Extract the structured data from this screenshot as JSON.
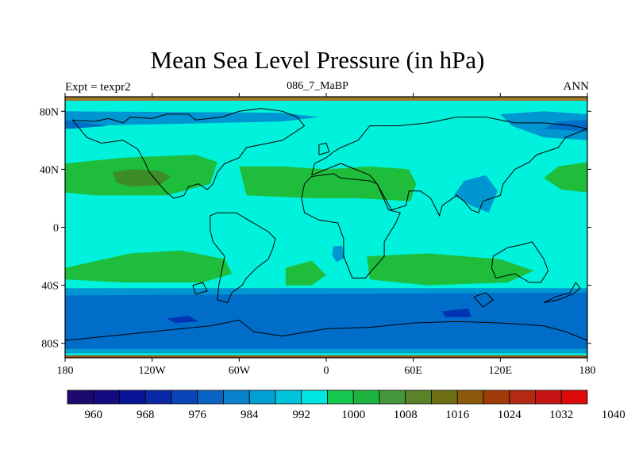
{
  "title": "Mean Sea Level Pressure (in hPa)",
  "left_label": "Expt = texpr2",
  "center_label": "086_7_MaBP",
  "right_label": "ANN",
  "map": {
    "lon_range": [
      -180,
      180
    ],
    "lat_range": [
      -90,
      90
    ],
    "lon_ticks": [
      {
        "value": -180,
        "label": "180"
      },
      {
        "value": -120,
        "label": "120W"
      },
      {
        "value": -60,
        "label": "60W"
      },
      {
        "value": 0,
        "label": "0"
      },
      {
        "value": 60,
        "label": "60E"
      },
      {
        "value": 120,
        "label": "120E"
      },
      {
        "value": 180,
        "label": "180"
      }
    ],
    "lat_ticks": [
      {
        "value": 80,
        "label": "80N"
      },
      {
        "value": 40,
        "label": "40N"
      },
      {
        "value": 0,
        "label": "0"
      },
      {
        "value": -40,
        "label": "40S"
      },
      {
        "value": -80,
        "label": "80S"
      }
    ],
    "background_level_color": "#00f2dc",
    "fields": [
      {
        "name": "low-band-north-core",
        "color": "#0096d2",
        "points": [
          [
            -180,
            80
          ],
          [
            -30,
            79
          ],
          [
            -5,
            76
          ],
          [
            -30,
            73
          ],
          [
            -120,
            71
          ],
          [
            -180,
            70
          ]
        ]
      },
      {
        "name": "low-band-north-east",
        "color": "#0096d2",
        "points": [
          [
            180,
            78
          ],
          [
            150,
            80
          ],
          [
            120,
            78
          ],
          [
            128,
            70
          ],
          [
            150,
            62
          ],
          [
            180,
            60
          ]
        ]
      },
      {
        "name": "low-band-north-west-dark",
        "color": "#006ec8",
        "points": [
          [
            -180,
            74
          ],
          [
            -150,
            70
          ],
          [
            -175,
            68
          ],
          [
            -180,
            68
          ]
        ]
      },
      {
        "name": "low-band-north-east-dark",
        "color": "#006ec8",
        "points": [
          [
            180,
            74
          ],
          [
            160,
            73
          ],
          [
            150,
            68
          ],
          [
            180,
            66
          ]
        ]
      },
      {
        "name": "high-north-atlantic",
        "color": "#1ebe3c",
        "points": [
          [
            -180,
            44
          ],
          [
            -140,
            48
          ],
          [
            -90,
            50
          ],
          [
            -75,
            45
          ],
          [
            -80,
            30
          ],
          [
            -110,
            22
          ],
          [
            -160,
            22
          ],
          [
            -180,
            24
          ]
        ]
      },
      {
        "name": "high-north-atlantic-core",
        "color": "#3c8c28",
        "points": [
          [
            -147,
            38
          ],
          [
            -135,
            40
          ],
          [
            -115,
            39
          ],
          [
            -107,
            35
          ],
          [
            -115,
            29
          ],
          [
            -135,
            28
          ],
          [
            -145,
            31
          ]
        ]
      },
      {
        "name": "high-north-africa",
        "color": "#1ebe3c",
        "points": [
          [
            -60,
            42
          ],
          [
            -30,
            42
          ],
          [
            0,
            40
          ],
          [
            30,
            42
          ],
          [
            57,
            40
          ],
          [
            62,
            30
          ],
          [
            58,
            18
          ],
          [
            20,
            20
          ],
          [
            -10,
            20
          ],
          [
            -55,
            22
          ]
        ]
      },
      {
        "name": "high-north-pacific",
        "color": "#1ebe3c",
        "points": [
          [
            180,
            45
          ],
          [
            160,
            42
          ],
          [
            150,
            34
          ],
          [
            162,
            26
          ],
          [
            180,
            24
          ]
        ]
      },
      {
        "name": "low-east-asia",
        "color": "#0096d2",
        "points": [
          [
            95,
            32
          ],
          [
            110,
            36
          ],
          [
            118,
            25
          ],
          [
            112,
            10
          ],
          [
            100,
            15
          ],
          [
            88,
            22
          ]
        ]
      },
      {
        "name": "low-tropical-spot",
        "color": "#0096d2",
        "points": [
          [
            5,
            -13
          ],
          [
            11,
            -13
          ],
          [
            13,
            -21
          ],
          [
            7,
            -24
          ],
          [
            4,
            -19
          ]
        ]
      },
      {
        "name": "high-south-atlantic",
        "color": "#1ebe3c",
        "points": [
          [
            -180,
            -28
          ],
          [
            -135,
            -18
          ],
          [
            -100,
            -16
          ],
          [
            -70,
            -22
          ],
          [
            -65,
            -32
          ],
          [
            -85,
            -38
          ],
          [
            -140,
            -38
          ],
          [
            -180,
            -36
          ]
        ]
      },
      {
        "name": "high-south-central",
        "color": "#1ebe3c",
        "points": [
          [
            -28,
            -28
          ],
          [
            -10,
            -23
          ],
          [
            0,
            -33
          ],
          [
            -10,
            -40
          ],
          [
            -28,
            -40
          ]
        ]
      },
      {
        "name": "high-south-indian",
        "color": "#1ebe3c",
        "points": [
          [
            28,
            -20
          ],
          [
            70,
            -18
          ],
          [
            120,
            -22
          ],
          [
            143,
            -30
          ],
          [
            125,
            -38
          ],
          [
            70,
            -40
          ],
          [
            30,
            -36
          ]
        ]
      },
      {
        "name": "lowband-south-outer",
        "color": "#0096d2",
        "points": [
          [
            -180,
            -42
          ],
          [
            180,
            -42
          ],
          [
            180,
            -50
          ],
          [
            -180,
            -50
          ]
        ]
      },
      {
        "name": "lowband-south-inner",
        "color": "#006ec8",
        "points": [
          [
            -180,
            -47
          ],
          [
            180,
            -45
          ],
          [
            180,
            -84
          ],
          [
            -180,
            -84
          ]
        ]
      },
      {
        "name": "low-south-spot-west",
        "color": "#0032b4",
        "points": [
          [
            -110,
            -63
          ],
          [
            -95,
            -61
          ],
          [
            -88,
            -65
          ],
          [
            -104,
            -66
          ]
        ]
      },
      {
        "name": "low-south-spot-east",
        "color": "#0032b4",
        "points": [
          [
            80,
            -58
          ],
          [
            98,
            -56
          ],
          [
            100,
            -62
          ],
          [
            82,
            -62
          ]
        ]
      },
      {
        "name": "polar-south-edge",
        "color": "#00a0d2",
        "points": [
          [
            -180,
            -84
          ],
          [
            180,
            -84
          ],
          [
            180,
            -87
          ],
          [
            -180,
            -87
          ]
        ]
      }
    ],
    "coastlines": [
      [
        [
          -175,
          74
        ],
        [
          -160,
          73
        ],
        [
          -150,
          75
        ],
        [
          -140,
          72
        ],
        [
          -135,
          76
        ],
        [
          -120,
          75
        ],
        [
          -110,
          78
        ],
        [
          -95,
          78
        ],
        [
          -90,
          74
        ],
        [
          -72,
          76
        ],
        [
          -60,
          80
        ],
        [
          -45,
          82
        ],
        [
          -30,
          80
        ],
        [
          -20,
          76
        ],
        [
          -15,
          70
        ],
        [
          -30,
          60
        ],
        [
          -40,
          58
        ],
        [
          -55,
          55
        ],
        [
          -60,
          48
        ],
        [
          -70,
          44
        ],
        [
          -75,
          38
        ],
        [
          -78,
          30
        ],
        [
          -82,
          26
        ],
        [
          -88,
          30
        ],
        [
          -95,
          28
        ],
        [
          -98,
          22
        ],
        [
          -105,
          20
        ],
        [
          -110,
          24
        ],
        [
          -117,
          32
        ],
        [
          -122,
          38
        ],
        [
          -125,
          45
        ],
        [
          -130,
          54
        ],
        [
          -140,
          60
        ],
        [
          -155,
          58
        ],
        [
          -165,
          62
        ],
        [
          -170,
          68
        ],
        [
          -175,
          74
        ]
      ],
      [
        [
          -80,
          8
        ],
        [
          -75,
          10
        ],
        [
          -62,
          10
        ],
        [
          -52,
          4
        ],
        [
          -40,
          -3
        ],
        [
          -35,
          -8
        ],
        [
          -37,
          -15
        ],
        [
          -40,
          -22
        ],
        [
          -48,
          -28
        ],
        [
          -55,
          -35
        ],
        [
          -58,
          -40
        ],
        [
          -65,
          -45
        ],
        [
          -68,
          -52
        ],
        [
          -75,
          -50
        ],
        [
          -74,
          -40
        ],
        [
          -72,
          -30
        ],
        [
          -70,
          -20
        ],
        [
          -78,
          -10
        ],
        [
          -80,
          -2
        ],
        [
          -80,
          8
        ]
      ],
      [
        [
          -15,
          30
        ],
        [
          -10,
          35
        ],
        [
          5,
          37
        ],
        [
          10,
          34
        ],
        [
          30,
          32
        ],
        [
          35,
          30
        ],
        [
          43,
          12
        ],
        [
          51,
          10
        ],
        [
          48,
          3
        ],
        [
          40,
          -10
        ],
        [
          40,
          -20
        ],
        [
          33,
          -28
        ],
        [
          27,
          -35
        ],
        [
          18,
          -35
        ],
        [
          12,
          -20
        ],
        [
          12,
          -8
        ],
        [
          8,
          3
        ],
        [
          -5,
          5
        ],
        [
          -15,
          10
        ],
        [
          -17,
          20
        ],
        [
          -15,
          30
        ]
      ],
      [
        [
          -10,
          36
        ],
        [
          -8,
          44
        ],
        [
          0,
          48
        ],
        [
          5,
          52
        ],
        [
          10,
          55
        ],
        [
          22,
          60
        ],
        [
          30,
          70
        ],
        [
          50,
          70
        ],
        [
          70,
          72
        ],
        [
          90,
          76
        ],
        [
          110,
          76
        ],
        [
          130,
          72
        ],
        [
          150,
          72
        ],
        [
          170,
          70
        ],
        [
          180,
          68
        ],
        [
          165,
          62
        ],
        [
          160,
          55
        ],
        [
          145,
          50
        ],
        [
          140,
          45
        ],
        [
          130,
          40
        ],
        [
          122,
          30
        ],
        [
          120,
          22
        ],
        [
          108,
          18
        ],
        [
          105,
          10
        ],
        [
          100,
          12
        ],
        [
          95,
          18
        ],
        [
          90,
          22
        ],
        [
          80,
          15
        ],
        [
          78,
          8
        ],
        [
          72,
          20
        ],
        [
          65,
          25
        ],
        [
          57,
          25
        ],
        [
          55,
          15
        ],
        [
          45,
          12
        ],
        [
          35,
          30
        ],
        [
          30,
          36
        ],
        [
          20,
          40
        ],
        [
          10,
          44
        ],
        [
          0,
          40
        ],
        [
          -10,
          36
        ]
      ],
      [
        [
          115,
          -20
        ],
        [
          125,
          -14
        ],
        [
          135,
          -12
        ],
        [
          142,
          -10
        ],
        [
          150,
          -22
        ],
        [
          153,
          -30
        ],
        [
          148,
          -38
        ],
        [
          140,
          -38
        ],
        [
          130,
          -32
        ],
        [
          117,
          -35
        ],
        [
          114,
          -28
        ],
        [
          115,
          -20
        ]
      ],
      [
        [
          -180,
          -78
        ],
        [
          -150,
          -75
        ],
        [
          -120,
          -72
        ],
        [
          -100,
          -70
        ],
        [
          -80,
          -68
        ],
        [
          -60,
          -64
        ],
        [
          -50,
          -72
        ],
        [
          -30,
          -75
        ],
        [
          0,
          -70
        ],
        [
          30,
          -69
        ],
        [
          60,
          -66
        ],
        [
          90,
          -65
        ],
        [
          120,
          -66
        ],
        [
          150,
          -68
        ],
        [
          165,
          -72
        ],
        [
          180,
          -78
        ]
      ],
      [
        [
          150,
          -52
        ],
        [
          160,
          -50
        ],
        [
          170,
          -46
        ],
        [
          175,
          -42
        ],
        [
          172,
          -38
        ],
        [
          168,
          -45
        ],
        [
          158,
          -48
        ],
        [
          150,
          -52
        ]
      ],
      [
        [
          -92,
          -40
        ],
        [
          -85,
          -38
        ],
        [
          -82,
          -44
        ],
        [
          -90,
          -46
        ],
        [
          -92,
          -40
        ]
      ],
      [
        [
          102,
          -48
        ],
        [
          110,
          -45
        ],
        [
          115,
          -50
        ],
        [
          108,
          -55
        ],
        [
          102,
          -48
        ]
      ],
      [
        [
          -5,
          50
        ],
        [
          2,
          52
        ],
        [
          0,
          58
        ],
        [
          -5,
          57
        ],
        [
          -5,
          50
        ]
      ]
    ]
  },
  "colorbar": {
    "colors": [
      "#1e0a6e",
      "#140a82",
      "#0a1496",
      "#0a28a5",
      "#0a46b9",
      "#0a64c3",
      "#0a82cd",
      "#00a0d2",
      "#00c3dc",
      "#00e6e1",
      "#14c850",
      "#1eb441",
      "#46963c",
      "#5a8228",
      "#6e6e14",
      "#8c5a0a",
      "#a03c0a",
      "#b42814",
      "#c81414",
      "#dc0a0a"
    ],
    "labels": [
      "960",
      "968",
      "976",
      "984",
      "992",
      "1000",
      "1008",
      "1016",
      "1024",
      "1032",
      "1040"
    ]
  }
}
